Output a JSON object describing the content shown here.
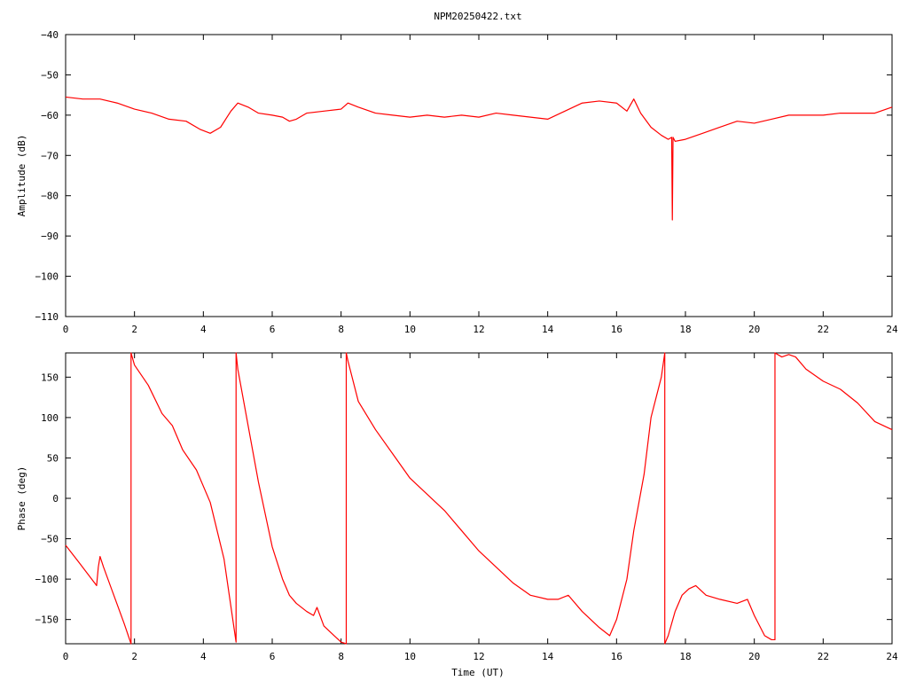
{
  "title": "NPM20250422.txt",
  "colors": {
    "trace": "#ff0000",
    "axis": "#000000",
    "background": "#ffffff"
  },
  "chart_data": [
    {
      "type": "line",
      "title": "NPM20250422.txt",
      "xlabel": "",
      "ylabel": "Amplitude (dB)",
      "xlim": [
        0,
        24
      ],
      "ylim": [
        -110,
        -40
      ],
      "xticks": [
        0,
        2,
        4,
        6,
        8,
        10,
        12,
        14,
        16,
        18,
        20,
        22,
        24
      ],
      "yticks": [
        -110,
        -100,
        -90,
        -80,
        -70,
        -60,
        -50,
        -40
      ],
      "xtick_labels": [
        "0",
        "2",
        "4",
        "6",
        "8",
        "10",
        "12",
        "14",
        "16",
        "18",
        "20",
        "22",
        "24"
      ],
      "ytick_labels": [
        "−110",
        "−100",
        "−90",
        "−80",
        "−70",
        "−60",
        "−50",
        "−40"
      ],
      "grid": false,
      "series": [
        {
          "x": [
            0,
            0.5,
            1.0,
            1.5,
            2.0,
            2.5,
            3.0,
            3.5,
            3.9,
            4.2,
            4.5,
            4.8,
            5.0,
            5.3,
            5.6,
            6.0,
            6.3,
            6.5,
            6.7,
            7.0,
            7.5,
            8.0,
            8.2,
            8.5,
            9.0,
            9.5,
            10.0,
            10.5,
            11.0,
            11.5,
            12.0,
            12.5,
            13.0,
            13.5,
            14.0,
            14.5,
            15.0,
            15.5,
            16.0,
            16.3,
            16.5,
            16.7,
            17.0,
            17.3,
            17.5,
            17.6,
            17.62,
            17.64,
            17.7,
            18.0,
            18.5,
            19.0,
            19.5,
            20.0,
            20.5,
            21.0,
            21.5,
            22.0,
            22.5,
            23.0,
            23.5,
            24.0
          ],
          "y": [
            -55.5,
            -56.0,
            -56.0,
            -57.0,
            -58.5,
            -59.5,
            -61.0,
            -61.5,
            -63.5,
            -64.5,
            -63.0,
            -59.0,
            -57.0,
            -58.0,
            -59.5,
            -60.0,
            -60.5,
            -61.5,
            -61.0,
            -59.5,
            -59.0,
            -58.5,
            -57.0,
            -58.0,
            -59.5,
            -60.0,
            -60.5,
            -60.0,
            -60.5,
            -60.0,
            -60.5,
            -59.5,
            -60.0,
            -60.5,
            -61.0,
            -59.0,
            -57.0,
            -56.5,
            -57.0,
            -59.0,
            -56.0,
            -59.5,
            -63.0,
            -65.0,
            -66.0,
            -65.5,
            -86.0,
            -65.5,
            -66.5,
            -66.0,
            -64.5,
            -63.0,
            -61.5,
            -62.0,
            -61.0,
            -60.0,
            -60.0,
            -60.0,
            -59.5,
            -59.5,
            -59.5,
            -58.0
          ]
        }
      ]
    },
    {
      "type": "line",
      "title": "",
      "xlabel": "Time (UT)",
      "ylabel": "Phase (deg)",
      "xlim": [
        0,
        24
      ],
      "ylim": [
        -180,
        180
      ],
      "xticks": [
        0,
        2,
        4,
        6,
        8,
        10,
        12,
        14,
        16,
        18,
        20,
        22,
        24
      ],
      "yticks": [
        -150,
        -100,
        -50,
        0,
        50,
        100,
        150
      ],
      "xtick_labels": [
        "0",
        "2",
        "4",
        "6",
        "8",
        "10",
        "12",
        "14",
        "16",
        "18",
        "20",
        "22",
        "24"
      ],
      "ytick_labels": [
        "−150",
        "−100",
        "−50",
        "0",
        "50",
        "100",
        "150"
      ],
      "grid": false,
      "series": [
        {
          "x": [
            0,
            0.4,
            0.9,
            0.95,
            1.0,
            1.1,
            1.4,
            1.7,
            1.9,
            1.9,
            2.0,
            2.4,
            2.8,
            3.1,
            3.4,
            3.8,
            4.2,
            4.6,
            4.95,
            4.95,
            5.0,
            5.3,
            5.6,
            6.0,
            6.3,
            6.5,
            6.7,
            7.0,
            7.2,
            7.3,
            7.5,
            7.8,
            8.0,
            8.15,
            8.15,
            8.2,
            8.5,
            9.0,
            9.5,
            10.0,
            10.5,
            11.0,
            11.5,
            12.0,
            12.5,
            13.0,
            13.5,
            14.0,
            14.3,
            14.6,
            15.0,
            15.5,
            15.8,
            16.0,
            16.3,
            16.5,
            16.8,
            17.0,
            17.3,
            17.4,
            17.4,
            17.5,
            17.7,
            17.9,
            18.1,
            18.3,
            18.6,
            19.0,
            19.5,
            19.8,
            20.0,
            20.3,
            20.5,
            20.6,
            20.6,
            20.8,
            21.0,
            21.2,
            21.5,
            22.0,
            22.5,
            23.0,
            23.5,
            24.0
          ],
          "y": [
            -58,
            -80,
            -108,
            -85,
            -72,
            -85,
            -120,
            -155,
            -180,
            180,
            165,
            140,
            105,
            90,
            60,
            35,
            -5,
            -75,
            -178,
            180,
            160,
            90,
            20,
            -60,
            -100,
            -120,
            -130,
            -140,
            -145,
            -135,
            -158,
            -170,
            -178,
            -180,
            180,
            170,
            120,
            85,
            55,
            25,
            5,
            -15,
            -40,
            -65,
            -85,
            -105,
            -120,
            -125,
            -125,
            -120,
            -140,
            -160,
            -170,
            -150,
            -100,
            -40,
            30,
            100,
            150,
            180,
            -180,
            -170,
            -140,
            -120,
            -112,
            -108,
            -120,
            -125,
            -130,
            -125,
            -145,
            -170,
            -175,
            -175,
            180,
            175,
            178,
            175,
            160,
            145,
            135,
            118,
            95,
            85
          ]
        }
      ]
    }
  ]
}
